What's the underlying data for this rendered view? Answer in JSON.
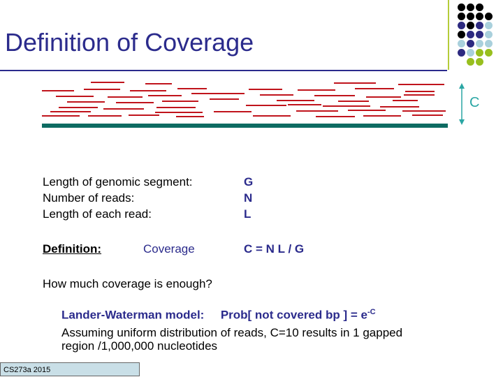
{
  "slide": {
    "title": "Definition of Coverage",
    "coverage_symbol": "C",
    "rows": [
      {
        "label": "Length of genomic segment:",
        "value": "G"
      },
      {
        "label": "Number of reads:",
        "value": "N"
      },
      {
        "label": "Length of each read:",
        "value": "L"
      }
    ],
    "definition": {
      "label": "Definition:",
      "word": "Coverage",
      "formula": "C = N L / G"
    },
    "question": "How much coverage is enough?",
    "model": {
      "label": "Lander-Waterman model:",
      "prob": "Prob[ not covered bp ] = e",
      "exponent": "-C"
    },
    "assumption": "Assuming uniform distribution of reads, C=10 results in 1 gapped region /1,000,000 nucleotides",
    "footer": "CS273a 2015"
  },
  "colors": {
    "title": "#2b2b8c",
    "read": "#c0141c",
    "genome": "#0d6b62",
    "arrow": "#2aa6a4",
    "footer_bg": "#c9dfe7",
    "dots": [
      "#000000",
      "#2d2a80",
      "#a9d0dc",
      "#98bf1e"
    ]
  },
  "icons": [
    "decorative-dot-grid",
    "double-headed-arrow"
  ]
}
